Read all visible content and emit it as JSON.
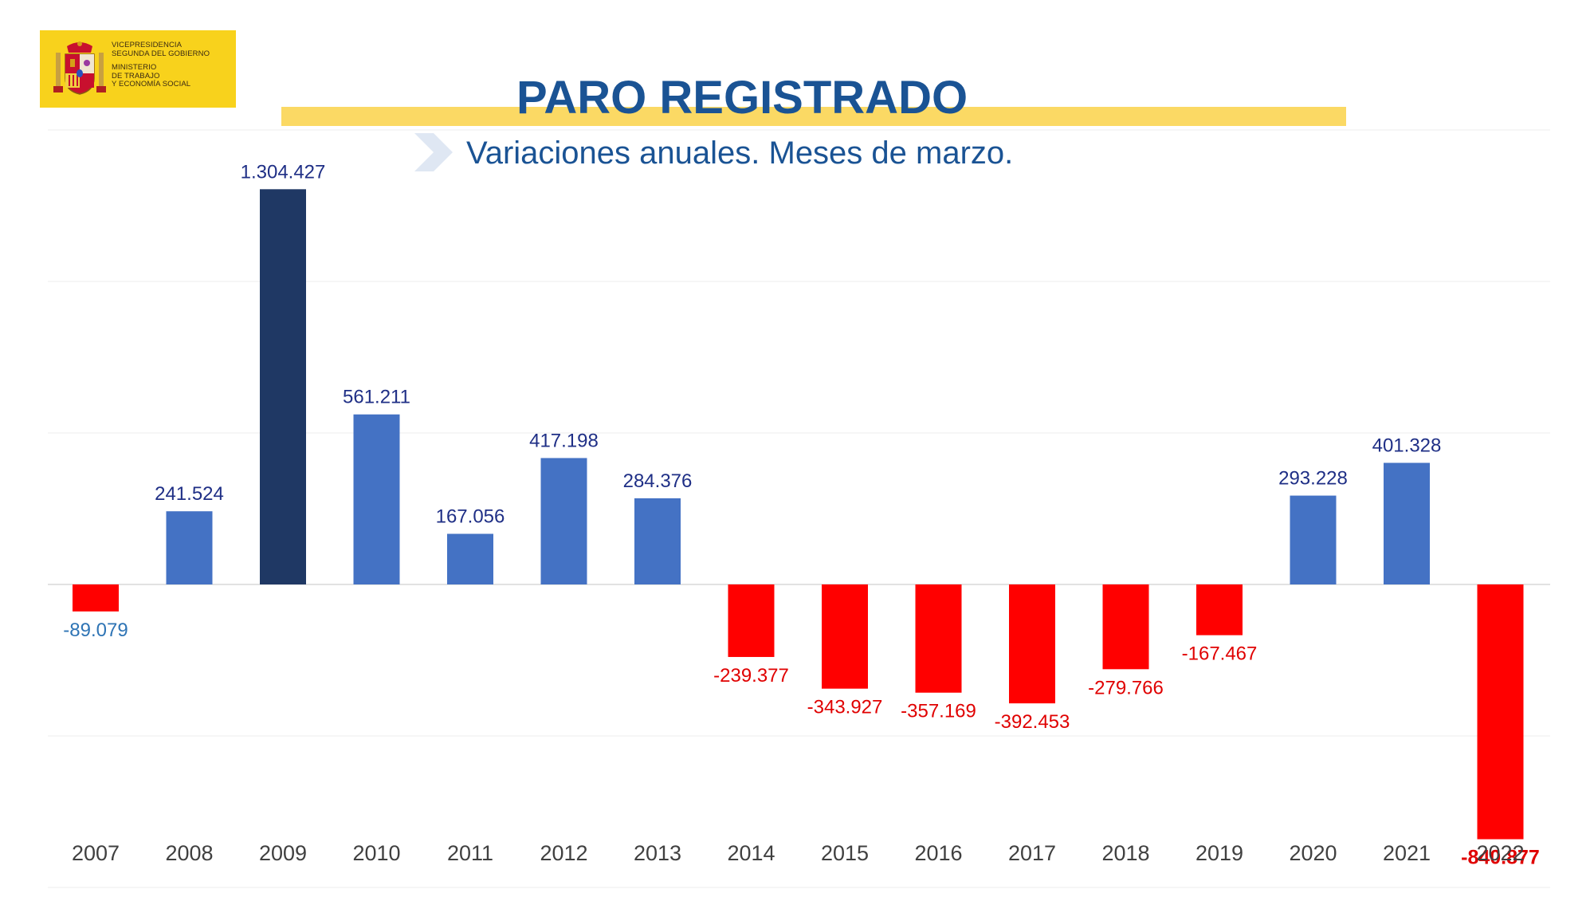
{
  "logo": {
    "line1": "VICEPRESIDENCIA",
    "line2": "SEGUNDA DEL GOBIERNO",
    "line3": "MINISTERIO",
    "line4": "DE TRABAJO",
    "line5": "Y ECONOMÍA SOCIAL"
  },
  "header": {
    "title": "PARO REGISTRADO",
    "subtitle": "Variaciones anuales. Meses de marzo."
  },
  "colors": {
    "positive": "#4472c4",
    "highlight": "#1f3864",
    "negative": "#ff0000",
    "label_positive": "#1f2f86",
    "label_negative": "#e00000",
    "label_negative_alt": "#2e74b5",
    "axis_text": "#404040",
    "gridline": "#eeeeee",
    "title": "#1a5394",
    "title_bar": "#fbd964",
    "logo_bg": "#f8d21c"
  },
  "chart_data": {
    "type": "bar",
    "title": "PARO REGISTRADO",
    "subtitle": "Variaciones anuales. Meses de marzo.",
    "xlabel": "",
    "ylabel": "",
    "ylim": [
      -1000000,
      1500000
    ],
    "grid": true,
    "categories": [
      "2007",
      "2008",
      "2009",
      "2010",
      "2011",
      "2012",
      "2013",
      "2014",
      "2015",
      "2016",
      "2017",
      "2018",
      "2019",
      "2020",
      "2021",
      "2022"
    ],
    "values": [
      -89079,
      241524,
      1304427,
      561211,
      167056,
      417198,
      284376,
      -239377,
      -343927,
      -357169,
      -392453,
      -279766,
      -167467,
      293228,
      401328,
      -840877
    ],
    "labels": [
      "-89.079",
      "241.524",
      "1.304.427",
      "561.211",
      "167.056",
      "417.198",
      "284.376",
      "-239.377",
      "-343.927",
      "-357.169",
      "-392.453",
      "-279.766",
      "-167.467",
      "293.228",
      "401.328",
      "-840.877"
    ],
    "highlight_category": "2009",
    "bold_label_category": "2022"
  }
}
